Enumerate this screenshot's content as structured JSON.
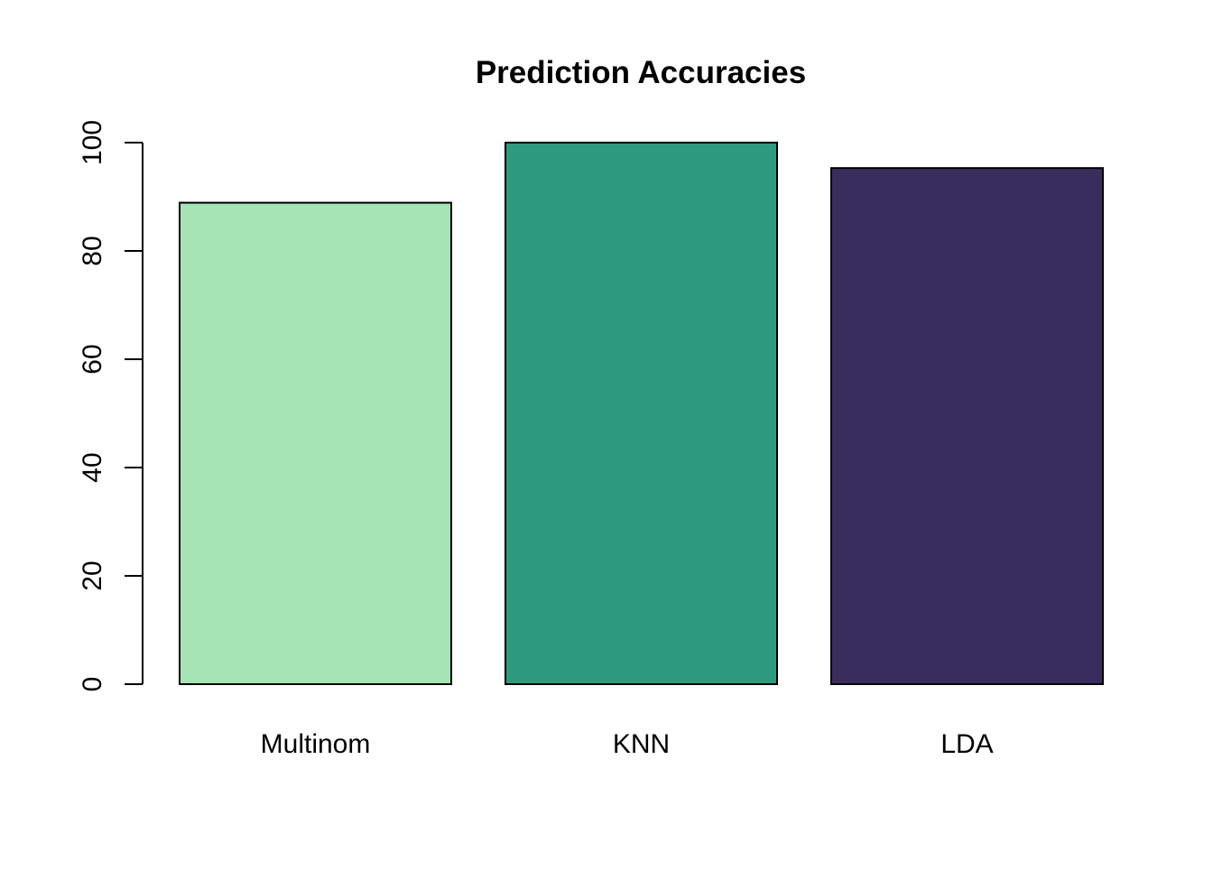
{
  "chart_data": {
    "type": "bar",
    "title": "Prediction Accuracies",
    "xlabel": "",
    "ylabel": "",
    "categories": [
      "Multinom",
      "KNN",
      "LDA"
    ],
    "values": [
      88.9,
      100,
      95.3
    ],
    "colors": [
      "#A6E4B5",
      "#2E9A7F",
      "#392D5D"
    ],
    "bar_border_color": "#000000",
    "ylim": [
      0,
      100
    ],
    "yticks": [
      0,
      20,
      40,
      60,
      80,
      100
    ],
    "ytick_labels": [
      "0",
      "20",
      "40",
      "60",
      "80",
      "100"
    ],
    "grid": false,
    "legend": "none"
  }
}
